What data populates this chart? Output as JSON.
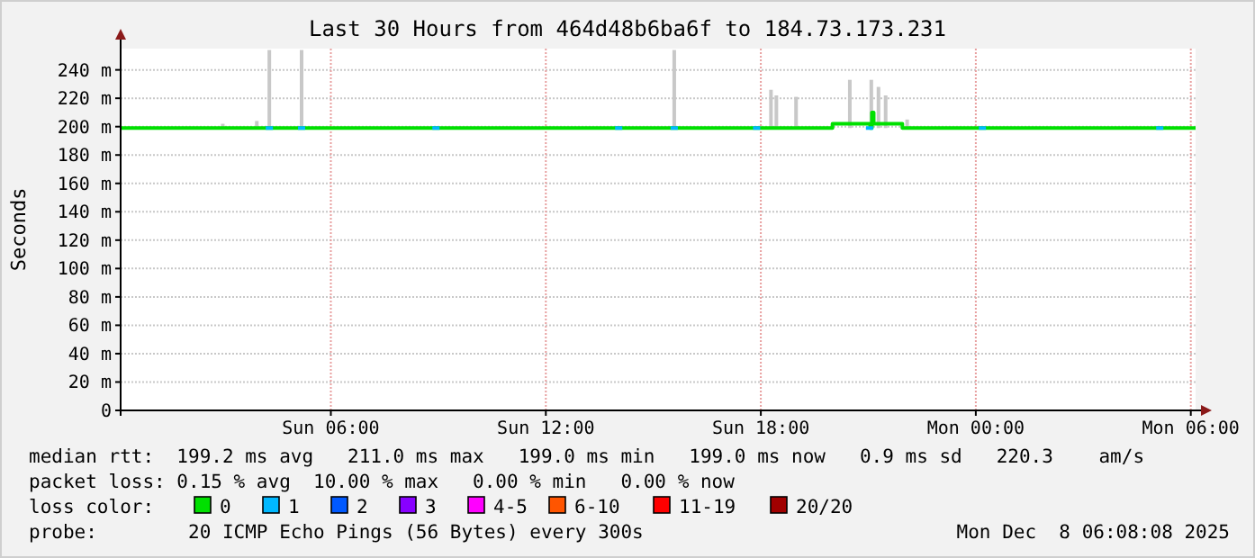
{
  "chart_data": {
    "type": "line",
    "title": "Last 30 Hours from 464d48b6ba6f to 184.73.173.231",
    "ylabel": "Seconds",
    "xlim": [
      "2025-12-07T00:08",
      "2025-12-08T06:08"
    ],
    "xticks": [
      {
        "value": "2025-12-07T06:00",
        "label": "Sun 06:00"
      },
      {
        "value": "2025-12-07T12:00",
        "label": "Sun 12:00"
      },
      {
        "value": "2025-12-07T18:00",
        "label": "Sun 18:00"
      },
      {
        "value": "2025-12-08T00:00",
        "label": "Mon 00:00"
      },
      {
        "value": "2025-12-08T06:00",
        "label": "Mon 06:00"
      }
    ],
    "ylim": [
      0,
      255
    ],
    "yticks": [
      {
        "value": 0,
        "label": "0"
      },
      {
        "value": 20,
        "label": "20 m"
      },
      {
        "value": 40,
        "label": "40 m"
      },
      {
        "value": 60,
        "label": "60 m"
      },
      {
        "value": 80,
        "label": "80 m"
      },
      {
        "value": 100,
        "label": "100 m"
      },
      {
        "value": 120,
        "label": "120 m"
      },
      {
        "value": 140,
        "label": "140 m"
      },
      {
        "value": 160,
        "label": "160 m"
      },
      {
        "value": 180,
        "label": "180 m"
      },
      {
        "value": 200,
        "label": "200 m"
      },
      {
        "value": 220,
        "label": "220 m"
      },
      {
        "value": 240,
        "label": "240 m"
      }
    ],
    "grid": true,
    "legend": "bottom",
    "legend_title": "loss color:",
    "series": [
      {
        "type": "bar",
        "color": "#c8c8c8",
        "x": [
          "2025-12-07T02:59",
          "2025-12-07T03:56",
          "2025-12-07T04:17",
          "2025-12-07T05:11",
          "2025-12-07T15:35",
          "2025-12-07T18:17",
          "2025-12-07T18:26",
          "2025-12-07T18:59",
          "2025-12-07T20:29",
          "2025-12-07T21:05",
          "2025-12-07T21:17",
          "2025-12-07T21:29",
          "2025-12-07T22:05"
        ],
        "base": [
          199,
          199,
          199,
          199,
          199,
          199,
          199,
          199,
          199,
          199,
          199,
          199,
          199
        ],
        "values": [
          3,
          5,
          55,
          55,
          55,
          27,
          23,
          22,
          34,
          34,
          29,
          23,
          6
        ]
      },
      {
        "name": "0",
        "color": "#00e000",
        "x": [
          "2025-12-07T00:08",
          "2025-12-07T19:59",
          "2025-12-07T20:00",
          "2025-12-07T21:00",
          "2025-12-07T21:03",
          "2025-12-07T21:06",
          "2025-12-07T21:09",
          "2025-12-07T21:54",
          "2025-12-07T21:57",
          "2025-12-08T06:08"
        ],
        "values": [
          199,
          199,
          202,
          202,
          199,
          210,
          202,
          202,
          199,
          199
        ]
      },
      {
        "type": "scatter",
        "name": "1",
        "color": "#00b8ff",
        "marker": "square",
        "x": [
          "2025-12-07T04:17",
          "2025-12-07T05:11",
          "2025-12-07T08:56",
          "2025-12-07T14:02",
          "2025-12-07T15:35",
          "2025-12-07T17:53",
          "2025-12-07T21:02",
          "2025-12-08T00:11",
          "2025-12-08T05:08"
        ],
        "values": [
          199,
          199,
          199,
          199,
          199,
          199,
          199,
          199,
          199
        ]
      },
      {
        "name": "2",
        "color": "#0059ff",
        "values": [
          null
        ]
      },
      {
        "name": "3",
        "color": "#8800ff",
        "values": [
          null
        ]
      },
      {
        "name": "4-5",
        "color": "#ff00ff",
        "values": [
          null
        ]
      },
      {
        "name": "6-10",
        "color": "#ff5500",
        "values": [
          null
        ]
      },
      {
        "name": "11-19",
        "color": "#ff0000",
        "values": [
          null
        ]
      },
      {
        "name": "20/20",
        "color": "#a10000",
        "values": [
          null
        ]
      }
    ],
    "annotations": [
      "median rtt:  199.2 ms avg   211.0 ms max   199.0 ms min   199.0 ms now   0.9 ms sd   220.3    am/s",
      "packet loss: 0.15 % avg  10.00 % max   0.00 % min   0.00 % now",
      "probe:        20 ICMP Echo Pings (56 Bytes) every 300s",
      "Mon Dec  8 06:08:08 2025"
    ]
  }
}
